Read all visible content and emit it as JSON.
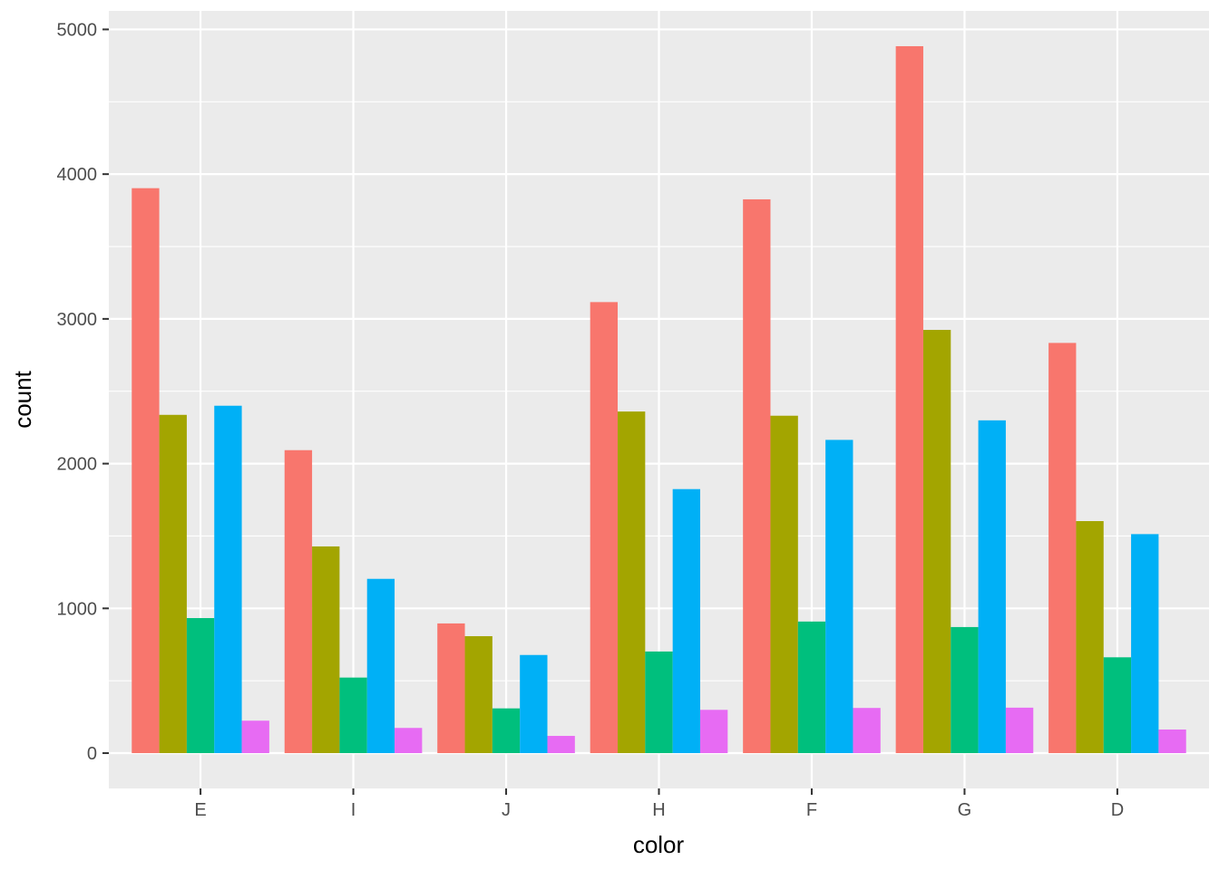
{
  "chart_data": {
    "type": "bar",
    "title": "",
    "xlabel": "color",
    "ylabel": "count",
    "categories": [
      "E",
      "I",
      "J",
      "H",
      "F",
      "G",
      "D"
    ],
    "series": [
      {
        "color": "#F8766D",
        "values": [
          3903,
          2093,
          896,
          3116,
          3826,
          4884,
          2834
        ]
      },
      {
        "color": "#A3A500",
        "values": [
          2337,
          1428,
          808,
          2360,
          2331,
          2924,
          1603
        ]
      },
      {
        "color": "#00BF7D",
        "values": [
          933,
          522,
          309,
          702,
          909,
          871,
          662
        ]
      },
      {
        "color": "#00B0F6",
        "values": [
          2400,
          1204,
          678,
          1824,
          2164,
          2299,
          1513
        ]
      },
      {
        "color": "#E76BF3",
        "values": [
          224,
          174,
          119,
          299,
          312,
          314,
          163
        ]
      }
    ],
    "yticks": [
      0,
      1000,
      2000,
      3000,
      4000,
      5000
    ],
    "ytick_labels": [
      "0",
      "1000",
      "2000",
      "3000",
      "4000",
      "5000"
    ],
    "ylim": [
      -244,
      5128
    ],
    "grid": true,
    "legend": "none",
    "colors": {
      "panel_background": "#EBEBEB",
      "grid_major": "#FFFFFF",
      "tick_mark": "#333333",
      "tick_text": "#4D4D4D"
    }
  }
}
